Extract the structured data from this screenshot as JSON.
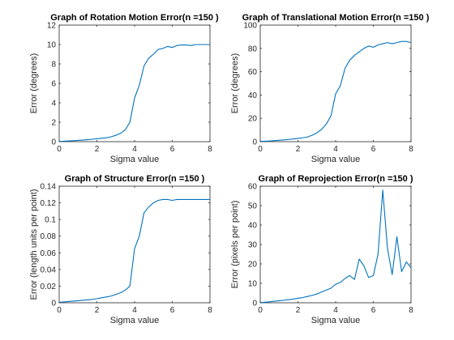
{
  "chart_data": [
    {
      "type": "line",
      "title": "Graph of Rotation Motion Error(n =150 )",
      "xlabel": "Sigma value",
      "ylabel": "Error (degrees)",
      "xlim": [
        0,
        8
      ],
      "ylim": [
        0,
        12
      ],
      "xticks": [
        0,
        2,
        4,
        6,
        8
      ],
      "yticks": [
        0,
        2,
        4,
        6,
        8,
        10,
        12
      ],
      "grid": false,
      "series_color": "#0072bd",
      "x": [
        0,
        0.25,
        0.5,
        0.75,
        1,
        1.25,
        1.5,
        1.75,
        2,
        2.25,
        2.5,
        2.75,
        3,
        3.25,
        3.5,
        3.75,
        4,
        4.25,
        4.5,
        4.75,
        5,
        5.25,
        5.5,
        5.75,
        6,
        6.25,
        6.5,
        6.75,
        7,
        7.25,
        7.5,
        7.75,
        8
      ],
      "y": [
        0.02,
        0.05,
        0.08,
        0.1,
        0.13,
        0.16,
        0.2,
        0.25,
        0.3,
        0.35,
        0.4,
        0.5,
        0.65,
        0.85,
        1.2,
        2.0,
        4.5,
        5.8,
        7.8,
        8.6,
        9.0,
        9.5,
        9.6,
        9.8,
        9.7,
        9.9,
        9.95,
        9.95,
        9.9,
        10.0,
        10.0,
        10.0,
        10.0
      ]
    },
    {
      "type": "line",
      "title": "Graph of Translational Motion Error(n =150 )",
      "xlabel": "Sigma value",
      "ylabel": "Error (degrees)",
      "xlim": [
        0,
        8
      ],
      "ylim": [
        0,
        100
      ],
      "xticks": [
        0,
        2,
        4,
        6,
        8
      ],
      "yticks": [
        0,
        20,
        40,
        60,
        80,
        100
      ],
      "grid": false,
      "series_color": "#0072bd",
      "x": [
        0,
        0.25,
        0.5,
        0.75,
        1,
        1.25,
        1.5,
        1.75,
        2,
        2.25,
        2.5,
        2.75,
        3,
        3.25,
        3.5,
        3.75,
        4,
        4.25,
        4.5,
        4.75,
        5,
        5.25,
        5.5,
        5.75,
        6,
        6.25,
        6.5,
        6.75,
        7,
        7.25,
        7.5,
        7.75,
        8
      ],
      "y": [
        0.2,
        0.4,
        0.6,
        0.9,
        1.2,
        1.5,
        1.9,
        2.3,
        2.8,
        3.3,
        4.0,
        5.5,
        7.5,
        10.5,
        15.0,
        22.0,
        41.0,
        48.0,
        63.0,
        70.0,
        74.0,
        77.0,
        80.0,
        82.0,
        81.0,
        83.0,
        84.0,
        85.0,
        84.0,
        85.0,
        86.0,
        86.0,
        85.0
      ]
    },
    {
      "type": "line",
      "title": "Graph of Structure Error(n =150 )",
      "xlabel": "Sigma value",
      "ylabel": "Error (length units per point)",
      "xlim": [
        0,
        8
      ],
      "ylim": [
        0,
        0.14
      ],
      "xticks": [
        0,
        2,
        4,
        6,
        8
      ],
      "yticks": [
        0,
        0.02,
        0.04,
        0.06,
        0.08,
        0.1,
        0.12,
        0.14
      ],
      "grid": false,
      "series_color": "#0072bd",
      "x": [
        0,
        0.25,
        0.5,
        0.75,
        1,
        1.25,
        1.5,
        1.75,
        2,
        2.25,
        2.5,
        2.75,
        3,
        3.25,
        3.5,
        3.75,
        4,
        4.25,
        4.5,
        4.75,
        5,
        5.25,
        5.5,
        5.75,
        6,
        6.25,
        6.5,
        6.75,
        7,
        7.25,
        7.5,
        7.75,
        8
      ],
      "y": [
        0.0005,
        0.001,
        0.0015,
        0.002,
        0.0025,
        0.003,
        0.0035,
        0.004,
        0.005,
        0.006,
        0.007,
        0.008,
        0.01,
        0.012,
        0.015,
        0.02,
        0.065,
        0.08,
        0.108,
        0.115,
        0.12,
        0.123,
        0.124,
        0.124,
        0.123,
        0.124,
        0.124,
        0.124,
        0.124,
        0.124,
        0.124,
        0.124,
        0.124
      ]
    },
    {
      "type": "line",
      "title": "Graph of Reprojection Error(n =150 )",
      "xlabel": "Sigma value",
      "ylabel": "Error (pixels per point)",
      "xlim": [
        0,
        8
      ],
      "ylim": [
        0,
        60
      ],
      "xticks": [
        0,
        2,
        4,
        6,
        8
      ],
      "yticks": [
        0,
        10,
        20,
        30,
        40,
        50,
        60
      ],
      "grid": false,
      "series_color": "#0072bd",
      "x": [
        0,
        0.25,
        0.5,
        0.75,
        1,
        1.25,
        1.5,
        1.75,
        2,
        2.25,
        2.5,
        2.75,
        3,
        3.25,
        3.5,
        3.75,
        4,
        4.25,
        4.5,
        4.75,
        5,
        5.25,
        5.5,
        5.75,
        6,
        6.25,
        6.5,
        6.75,
        7,
        7.25,
        7.5,
        7.75,
        8
      ],
      "y": [
        0.1,
        0.3,
        0.5,
        0.8,
        1.0,
        1.3,
        1.6,
        1.9,
        2.3,
        2.7,
        3.2,
        3.8,
        4.5,
        5.5,
        6.5,
        7.5,
        9.5,
        10.5,
        12.5,
        14.0,
        12.0,
        22.5,
        19.0,
        13.0,
        14.0,
        25.0,
        58.0,
        28.0,
        14.5,
        34.0,
        16.0,
        21.0,
        18.0
      ]
    }
  ]
}
